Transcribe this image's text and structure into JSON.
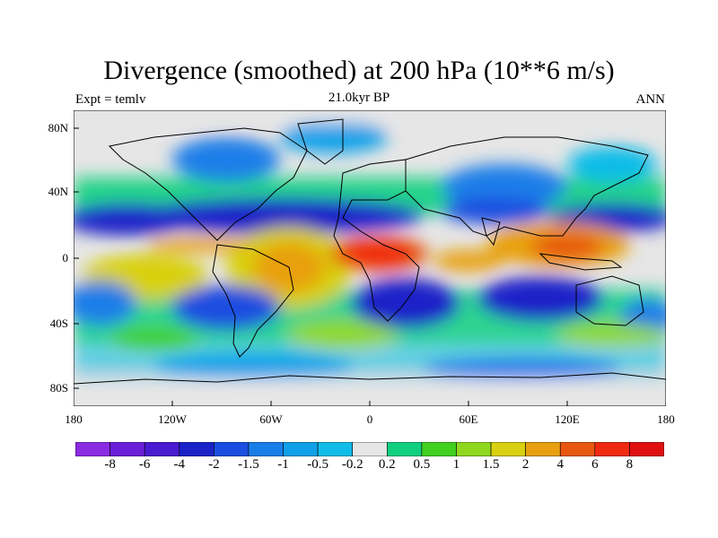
{
  "title": "Divergence (smoothed) at 200 hPa (10**6 m/s)",
  "subtitle": "21.0kyr BP",
  "left_label": "Expt = temlv",
  "right_label": "ANN",
  "lat_ticks": [
    "80N",
    "40N",
    "0",
    "40S",
    "80S"
  ],
  "lon_ticks": [
    "180",
    "120W",
    "60W",
    "0",
    "60E",
    "120E",
    "180"
  ],
  "colorbar": {
    "labels": [
      "-8",
      "-6",
      "-4",
      "-2",
      "-1.5",
      "-1",
      "-0.5",
      "-0.2",
      "0.2",
      "0.5",
      "1",
      "1.5",
      "2",
      "4",
      "6",
      "8"
    ],
    "colors": [
      "#8a2be2",
      "#6a1fd8",
      "#4a1bd0",
      "#1a22c8",
      "#1a4ee0",
      "#1a7ee8",
      "#10a0e8",
      "#10bce8",
      "#e6e6e6",
      "#10d080",
      "#40d020",
      "#90d820",
      "#d8d010",
      "#e8a010",
      "#e85810",
      "#f02a10",
      "#e01010"
    ]
  }
}
